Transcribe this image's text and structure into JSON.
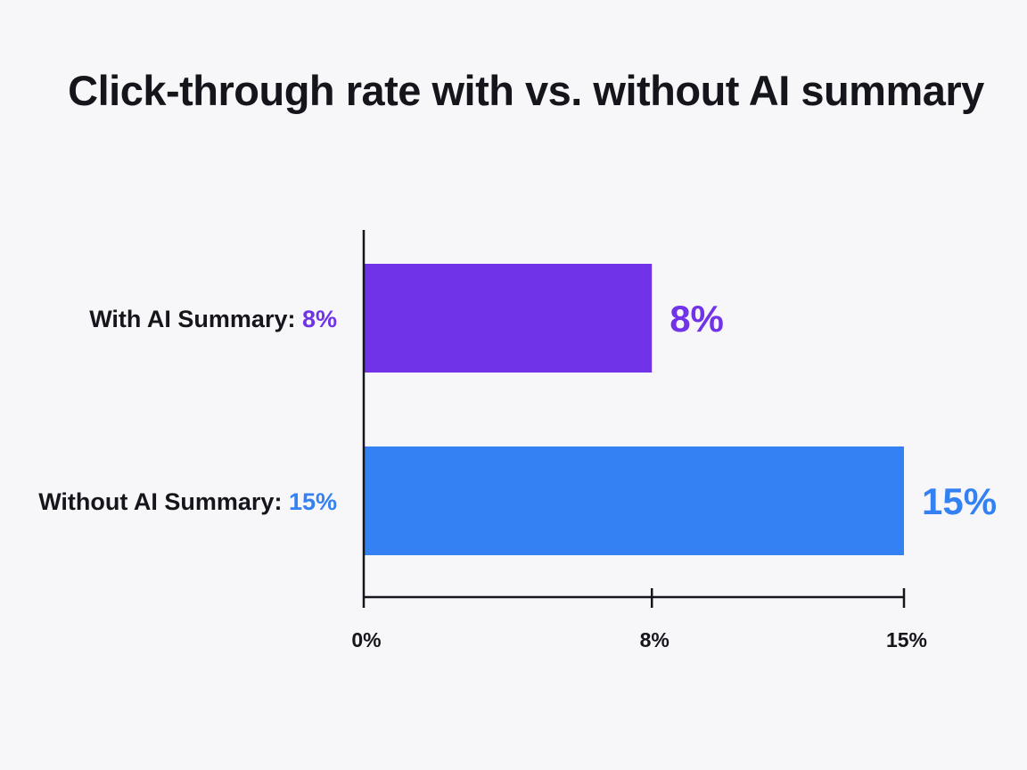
{
  "chart_data": {
    "type": "bar",
    "orientation": "horizontal",
    "title": "Click-through rate with vs. without AI summary",
    "categories": [
      "With AI Summary",
      "Without AI Summary"
    ],
    "category_labels": [
      {
        "name": "With AI Summary:",
        "value_text": "8%"
      },
      {
        "name": "Without AI Summary:",
        "value_text": "15%"
      }
    ],
    "values": [
      8,
      15
    ],
    "data_labels": [
      "8%",
      "15%"
    ],
    "colors": [
      "#7033e8",
      "#3381f2"
    ],
    "xlabel": "",
    "ylabel": "",
    "xlim": [
      0,
      15
    ],
    "x_ticks": [
      0,
      8,
      15
    ],
    "x_tick_labels": [
      "0%",
      "8%",
      "15%"
    ],
    "grid": false,
    "legend": "none"
  }
}
